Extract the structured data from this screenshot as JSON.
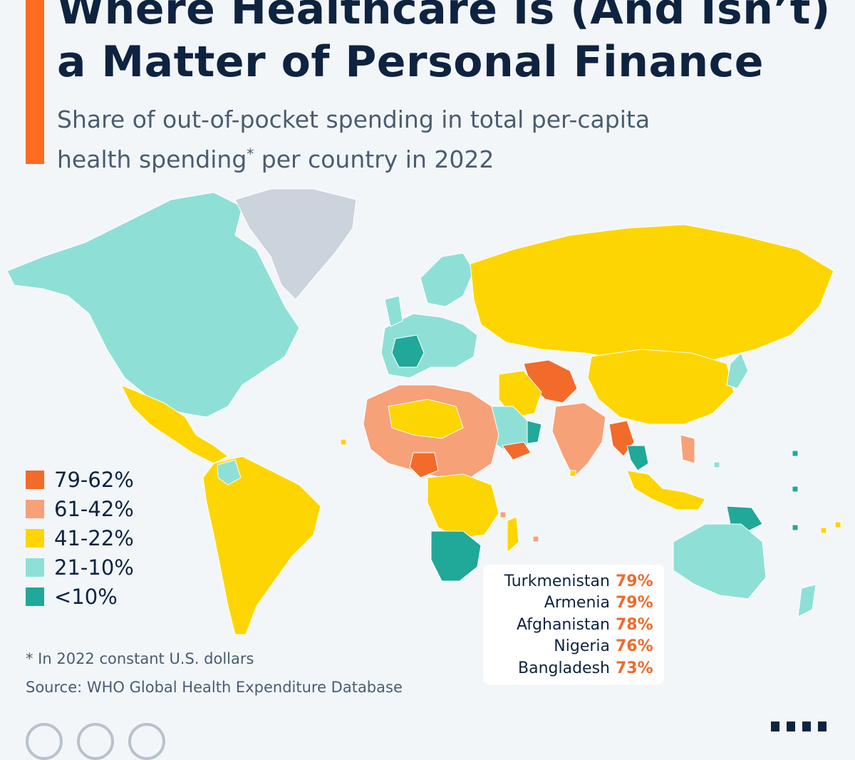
{
  "title_lines": [
    "Where Healthcare Is (And Isn’t)",
    "a Matter of Personal Finance"
  ],
  "subtitle_line1": "Share of out-of-pocket spending in total per-capita",
  "subtitle_line2a": "health spending",
  "subtitle_star": "*",
  "subtitle_line2b": " per country in 2022",
  "legend": [
    {
      "label": "79-62%",
      "color": "#f26b2b"
    },
    {
      "label": "61-42%",
      "color": "#f7a179"
    },
    {
      "label": "41-22%",
      "color": "#fdd500"
    },
    {
      "label": "21-10%",
      "color": "#8ee0d6"
    },
    {
      "label": "<10%",
      "color": "#20a898"
    }
  ],
  "no_data_color": "#cbd3dc",
  "top_countries": [
    {
      "name": "Turkmenistan",
      "value": "79%"
    },
    {
      "name": "Armenia",
      "value": "79%"
    },
    {
      "name": "Afghanistan",
      "value": "78%"
    },
    {
      "name": "Nigeria",
      "value": "76%"
    },
    {
      "name": "Bangladesh",
      "value": "73%"
    }
  ],
  "footnote": "* In 2022 constant U.S. dollars",
  "source": "Source: WHO Global Health Expenditure Database"
}
